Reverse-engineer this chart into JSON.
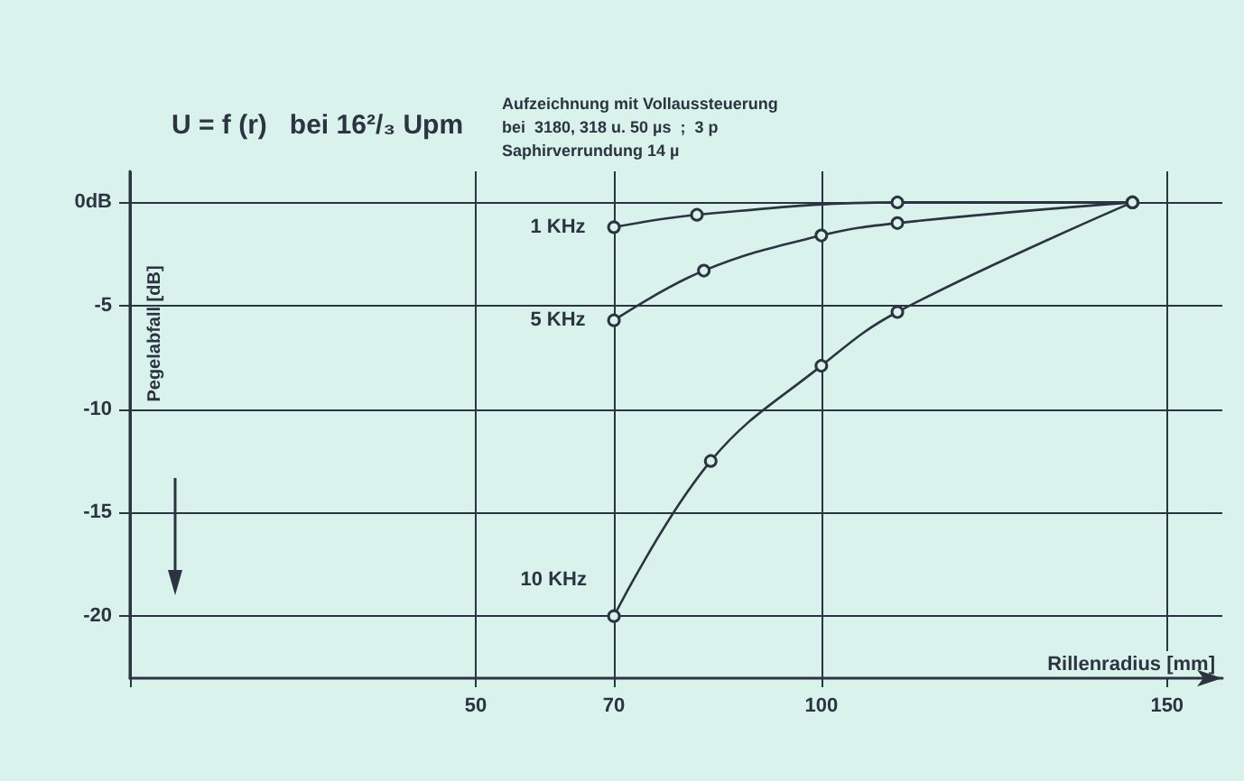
{
  "chart_data": {
    "type": "line",
    "title": "U = f (r)   bei 16²/₃ Upm",
    "annotations": [
      "Aufzeichnung mit Vollaussteuerung",
      "bei  3180, 318 u. 50 µs  ;  3 p",
      "Saphirverrundung 14 µ"
    ],
    "xlabel": "Rillenradius [mm]",
    "ylabel": "Pegelabfall [dB]",
    "xlim": [
      0,
      158
    ],
    "xticks": [
      {
        "value": 0,
        "label": null
      },
      50,
      70,
      100,
      150
    ],
    "ylim": [
      -23,
      1.5
    ],
    "yticks": [
      {
        "value": 0,
        "label": "0dB"
      },
      -5,
      -10,
      -15,
      -20
    ],
    "grid": true,
    "legend": false,
    "marker": "circle",
    "line_style": "solid",
    "series": [
      {
        "name": "1 KHz",
        "color": "#2b3440",
        "x": [
          70,
          82,
          111,
          145
        ],
        "values": [
          -1.2,
          -0.6,
          0,
          0
        ]
      },
      {
        "name": "5 KHz",
        "color": "#2b3440",
        "x": [
          70,
          83,
          100,
          111,
          145
        ],
        "values": [
          -5.7,
          -3.3,
          -1.6,
          -1,
          0
        ]
      },
      {
        "name": "10 KHz",
        "color": "#2b3440",
        "x": [
          70,
          84,
          100,
          111,
          145
        ],
        "values": [
          -20,
          -12.5,
          -7.9,
          -5.3,
          0
        ]
      }
    ]
  }
}
